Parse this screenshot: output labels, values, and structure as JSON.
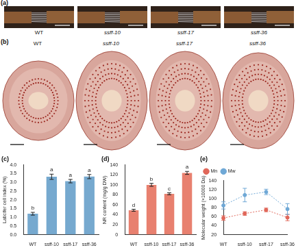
{
  "panels": [
    {
      "label": "(a)",
      "samples": [
        "WT",
        "ssff-10",
        "ssff-17",
        "ssff-36"
      ]
    },
    {
      "label": "(b)",
      "samples": [
        "WT",
        "ssff-10",
        "ssff-17",
        "ssff-36"
      ]
    }
  ],
  "chart_data": [
    {
      "type": "bar",
      "title": "(c)",
      "y_label": "Laticifer cell index (%)",
      "categories": [
        "WT",
        "ssff-10",
        "ssff-17",
        "ssff-36"
      ],
      "values": [
        1.2,
        3.32,
        3.07,
        3.33
      ],
      "errors": [
        0.08,
        0.15,
        0.1,
        0.12
      ],
      "annotations": [
        "b",
        "a",
        "a",
        "a"
      ],
      "color": "#76a9cf",
      "ylim": [
        0,
        4
      ],
      "yticks": [
        {
          "value": 0,
          "label": "0.0"
        },
        {
          "value": 0.5,
          "label": "0.5"
        },
        {
          "value": 1,
          "label": "1.0"
        },
        {
          "value": 1.5,
          "label": "1.5"
        },
        {
          "value": 2,
          "label": "2.0"
        },
        {
          "value": 2.5,
          "label": "2.5"
        },
        {
          "value": 3,
          "label": "3.0"
        },
        {
          "value": 3.5,
          "label": "3.5"
        },
        {
          "value": 4,
          "label": "4.0"
        }
      ],
      "grid": false
    },
    {
      "type": "bar",
      "title": "(d)",
      "y_label": "NR content (mg/g DW)",
      "categories": [
        "WT",
        "ssff-10",
        "ssff-17",
        "ssff-36"
      ],
      "values": [
        49,
        100,
        82,
        124
      ],
      "errors": [
        2,
        3,
        2,
        3
      ],
      "annotations": [
        "d",
        "b",
        "c",
        "a"
      ],
      "color": "#e8806f",
      "ylim": [
        0,
        140
      ],
      "yticks": [
        0,
        20,
        40,
        60,
        80,
        100,
        120,
        140
      ],
      "grid": false
    },
    {
      "type": "line",
      "title": "(e)",
      "y_label": "Molecular weight (×10000 Da)",
      "categories": [
        "WT",
        "ssff-10",
        "ssff-17",
        "ssff-36"
      ],
      "series": [
        {
          "name": "Mn",
          "color": "#e0675a",
          "values": [
            57,
            67,
            75,
            58
          ],
          "errors": [
            5,
            4,
            4,
            7
          ],
          "marker": "circle",
          "line_style": "dotted"
        },
        {
          "name": "Mw",
          "color": "#6fa8d6",
          "values": [
            85,
            108,
            115,
            77
          ],
          "errors": [
            8,
            15,
            6,
            12
          ],
          "marker": "circle",
          "line_style": "dotted"
        }
      ],
      "ylim": [
        20,
        140
      ],
      "yticks": [
        20,
        40,
        60,
        80,
        100,
        120,
        140
      ],
      "legend": "upper left",
      "grid": false
    }
  ]
}
